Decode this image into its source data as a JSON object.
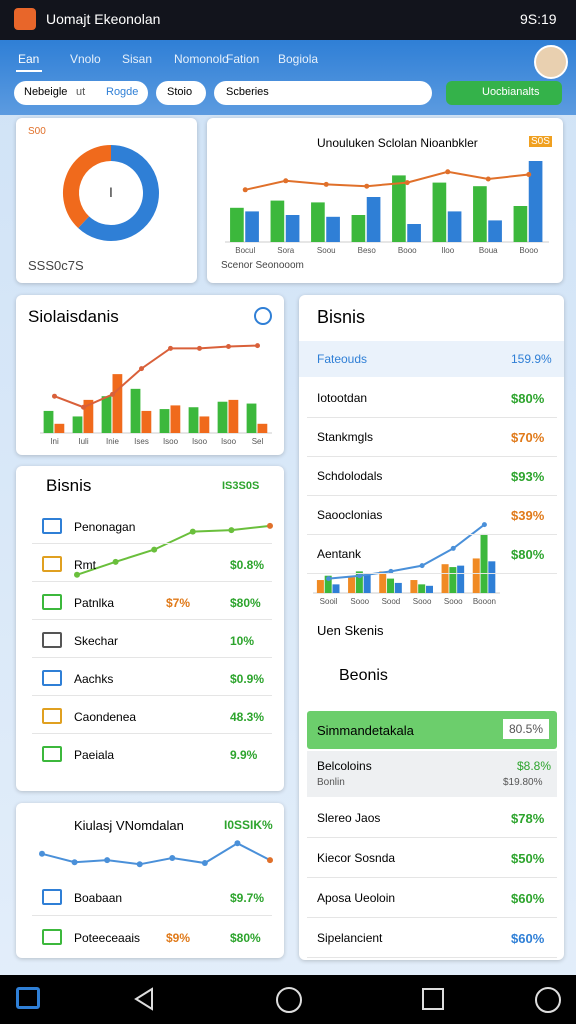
{
  "status": {
    "app": "Uomajt Ekeonolan",
    "time": "9S:19"
  },
  "tabs": [
    "Ean",
    "Vnolo",
    "Sisan",
    "Nomonolo",
    "Fation",
    "Bogiola"
  ],
  "filters": [
    "Nebeigle",
    "ut",
    "Rogde",
    "Stoio"
  ],
  "search": "Scberies",
  "action": "Uocbianalts",
  "donut": {
    "badge": "S00",
    "center": "I",
    "caption": "SSS0c7S",
    "values": [
      62,
      38
    ],
    "colors": [
      "#2f7fd6",
      "#f06a1c"
    ]
  },
  "combo": {
    "title": "Unouluken Sclolan Nioanbkler",
    "badge": "S0S",
    "footer": "Scenor Seonooom",
    "ylim": [
      0,
      100
    ],
    "categories": [
      "Bocul",
      "Sora",
      "Soou",
      "Beso",
      "Booo",
      "Iloo",
      "Boua",
      "Booo"
    ],
    "series": [
      {
        "kind": "bar",
        "color": "#3cb83c",
        "values": [
          38,
          46,
          44,
          30,
          74,
          66,
          62,
          40
        ]
      },
      {
        "kind": "bar",
        "color": "#2f7fd6",
        "values": [
          34,
          30,
          28,
          50,
          20,
          34,
          24,
          90
        ]
      },
      {
        "kind": "line",
        "color": "#e0702a",
        "values": [
          58,
          68,
          64,
          62,
          66,
          78,
          70,
          75
        ]
      }
    ]
  },
  "sales": {
    "title": "Siolaisdanis",
    "ylim": [
      0,
      100
    ],
    "categories": [
      "Ini",
      "Iuli",
      "Inie",
      "Ises",
      "Isoo",
      "Isoo",
      "Isoo",
      "Sel"
    ],
    "series": [
      {
        "kind": "bar",
        "color": "#3cb83c",
        "values": [
          24,
          18,
          40,
          48,
          26,
          28,
          34,
          32
        ]
      },
      {
        "kind": "bar",
        "color": "#f06a1c",
        "values": [
          10,
          36,
          64,
          24,
          30,
          18,
          36,
          10
        ]
      },
      {
        "kind": "line",
        "color": "#d9603a",
        "values": [
          40,
          28,
          42,
          70,
          92,
          92,
          94,
          95
        ]
      }
    ]
  },
  "list": {
    "title": "Bisnis",
    "badge": "IS3S0S",
    "line": {
      "color": "#6abf3c",
      "ylim": [
        0,
        100
      ],
      "values": [
        10,
        28,
        45,
        70,
        72,
        78
      ]
    },
    "rows": [
      {
        "label": "Penonagan",
        "v1": "",
        "v2": ""
      },
      {
        "label": "Rmt",
        "v1": "",
        "v2": "$0.8%"
      },
      {
        "label": "Patnlka",
        "v1": "$7%",
        "v2": "$80%"
      },
      {
        "label": "Skechar",
        "v1": "",
        "v2": "10%"
      },
      {
        "label": "Aachks",
        "v1": "",
        "v2": "$0.9%"
      },
      {
        "label": "Caondenea",
        "v1": "",
        "v2": "48.3%"
      },
      {
        "label": "Paeiala",
        "v1": "",
        "v2": "9.9%"
      }
    ]
  },
  "mini": {
    "title": "Kiulasj VNomdalan",
    "badge": "I0SSIK%",
    "line": {
      "color": "#4a90d9",
      "ylim": [
        0,
        100
      ],
      "values": [
        60,
        40,
        45,
        35,
        50,
        38,
        85,
        45
      ]
    },
    "rows": [
      {
        "label": "Boabaan",
        "v1": "",
        "v2": "$9.7%"
      },
      {
        "label": "Poteeceaais",
        "v1": "$9%",
        "v2": "$80%"
      }
    ]
  },
  "panel": {
    "title": "Bisnis",
    "head": {
      "label": "Fateouds",
      "value": "159.9%"
    },
    "rows": [
      {
        "label": "Iotootdan",
        "value": "$80%",
        "color": "#2da42d"
      },
      {
        "label": "Stankmgls",
        "value": "$70%",
        "color": "#e07a1a"
      },
      {
        "label": "Schdolodals",
        "value": "$93%",
        "color": "#2da42d"
      },
      {
        "label": "Saooclonias",
        "value": "$39%",
        "color": "#e07a1a"
      },
      {
        "label": "Aentank",
        "value": "$80%",
        "color": "#2da42d"
      }
    ],
    "chart": {
      "ylim": [
        0,
        100
      ],
      "categories": [
        "Sooil",
        "Sooo",
        "Sood",
        "Sooo",
        "Sooo",
        "Booon"
      ],
      "series": [
        {
          "kind": "bar",
          "color": "#f08a24",
          "values": [
            18,
            22,
            30,
            18,
            40,
            48
          ]
        },
        {
          "kind": "bar",
          "color": "#3cb83c",
          "values": [
            24,
            30,
            20,
            12,
            36,
            82
          ]
        },
        {
          "kind": "bar",
          "color": "#2f7fd6",
          "values": [
            12,
            26,
            14,
            10,
            38,
            44
          ]
        },
        {
          "kind": "line",
          "color": "#4a90d9",
          "values": [
            20,
            24,
            30,
            38,
            62,
            95
          ]
        }
      ]
    },
    "sub": "Uen Skenis",
    "section": "Beonis",
    "highlight": {
      "label": "Simmandetakala",
      "value": "80.5%"
    },
    "pair": {
      "label": "Belcoloins",
      "sublabel": "Bonlin",
      "value": "$8.8%",
      "subvalue": "$19.80%"
    },
    "rows2": [
      {
        "label": "Slereo Jaos",
        "value": "$78%",
        "color": "#2da42d"
      },
      {
        "label": "Kiecor Sosnda",
        "value": "$50%",
        "color": "#2da42d"
      },
      {
        "label": "Aposa Ueoloin",
        "value": "$60%",
        "color": "#2da42d"
      },
      {
        "label": "Sipelancient",
        "value": "$60%",
        "color": "#2f7fd6"
      }
    ]
  }
}
